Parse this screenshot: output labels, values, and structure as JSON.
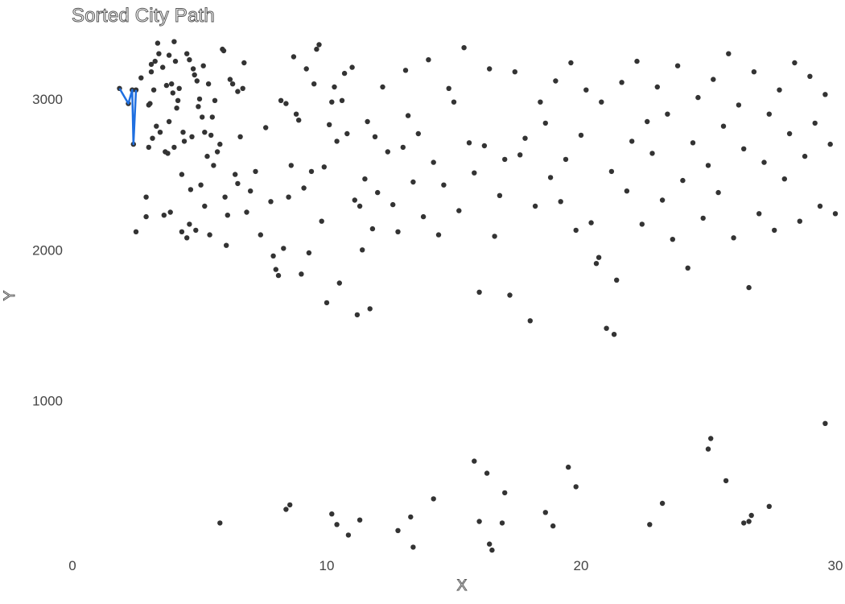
{
  "chart_data": {
    "type": "scatter",
    "title": "Sorted City Path",
    "xlabel": "X",
    "ylabel": "Y",
    "xlim": [
      0,
      30
    ],
    "ylim": [
      0,
      3400
    ],
    "xticks": [
      "0",
      "10",
      "20",
      "30"
    ],
    "yticks": [
      "1000",
      "2000",
      "3000"
    ],
    "grid": false,
    "colors": {
      "points": "#333333",
      "path": "#1f6fe0"
    },
    "path": [
      [
        1.85,
        3070
      ],
      [
        2.2,
        2970
      ],
      [
        2.35,
        3060
      ],
      [
        2.4,
        2700
      ],
      [
        2.5,
        3060
      ]
    ],
    "points": [
      [
        1.85,
        3070
      ],
      [
        2.2,
        2970
      ],
      [
        2.35,
        3060
      ],
      [
        2.4,
        2700
      ],
      [
        2.5,
        3060
      ],
      [
        2.5,
        2120
      ],
      [
        2.7,
        3140
      ],
      [
        2.9,
        2220
      ],
      [
        2.9,
        2350
      ],
      [
        3.0,
        2960
      ],
      [
        3.0,
        2680
      ],
      [
        3.05,
        2970
      ],
      [
        3.1,
        3230
      ],
      [
        3.1,
        3180
      ],
      [
        3.15,
        2740
      ],
      [
        3.2,
        3060
      ],
      [
        3.25,
        3250
      ],
      [
        3.3,
        2820
      ],
      [
        3.35,
        3370
      ],
      [
        3.4,
        3300
      ],
      [
        3.45,
        2780
      ],
      [
        3.55,
        3210
      ],
      [
        3.6,
        2230
      ],
      [
        3.65,
        2650
      ],
      [
        3.7,
        3090
      ],
      [
        3.75,
        2640
      ],
      [
        3.8,
        3290
      ],
      [
        3.8,
        2850
      ],
      [
        3.85,
        2250
      ],
      [
        3.9,
        3100
      ],
      [
        3.95,
        3040
      ],
      [
        4.0,
        2680
      ],
      [
        4.0,
        3380
      ],
      [
        4.05,
        3250
      ],
      [
        4.1,
        2940
      ],
      [
        4.15,
        2990
      ],
      [
        4.2,
        3070
      ],
      [
        4.3,
        2500
      ],
      [
        4.3,
        2120
      ],
      [
        4.35,
        2780
      ],
      [
        4.4,
        2720
      ],
      [
        4.5,
        3300
      ],
      [
        4.5,
        2080
      ],
      [
        4.6,
        3260
      ],
      [
        4.6,
        2170
      ],
      [
        4.65,
        2400
      ],
      [
        4.7,
        2750
      ],
      [
        4.75,
        3200
      ],
      [
        4.8,
        3160
      ],
      [
        4.85,
        2130
      ],
      [
        4.9,
        3120
      ],
      [
        4.95,
        2950
      ],
      [
        5.0,
        3000
      ],
      [
        5.05,
        2430
      ],
      [
        5.1,
        2880
      ],
      [
        5.15,
        3220
      ],
      [
        5.2,
        2780
      ],
      [
        5.2,
        2290
      ],
      [
        5.3,
        2620
      ],
      [
        5.35,
        3100
      ],
      [
        5.4,
        2100
      ],
      [
        5.45,
        2760
      ],
      [
        5.5,
        2880
      ],
      [
        5.55,
        2560
      ],
      [
        5.6,
        2990
      ],
      [
        5.7,
        2650
      ],
      [
        5.8,
        2700
      ],
      [
        5.9,
        3330
      ],
      [
        5.95,
        3320
      ],
      [
        6.0,
        2350
      ],
      [
        6.05,
        2030
      ],
      [
        6.1,
        2230
      ],
      [
        6.2,
        3130
      ],
      [
        6.3,
        3100
      ],
      [
        6.4,
        2500
      ],
      [
        6.5,
        2440
      ],
      [
        6.5,
        3050
      ],
      [
        6.6,
        2750
      ],
      [
        6.7,
        3070
      ],
      [
        6.75,
        3240
      ],
      [
        6.85,
        2250
      ],
      [
        7.0,
        2390
      ],
      [
        7.2,
        2520
      ],
      [
        7.4,
        2100
      ],
      [
        7.6,
        2810
      ],
      [
        7.8,
        2320
      ],
      [
        7.9,
        1960
      ],
      [
        8.0,
        1870
      ],
      [
        8.1,
        1830
      ],
      [
        8.2,
        2990
      ],
      [
        8.3,
        2010
      ],
      [
        8.4,
        2970
      ],
      [
        8.5,
        2350
      ],
      [
        8.6,
        2560
      ],
      [
        8.7,
        3280
      ],
      [
        8.8,
        2900
      ],
      [
        8.9,
        2860
      ],
      [
        9.0,
        1840
      ],
      [
        9.1,
        2410
      ],
      [
        9.2,
        3200
      ],
      [
        9.3,
        1980
      ],
      [
        9.4,
        2520
      ],
      [
        9.5,
        3100
      ],
      [
        9.6,
        3330
      ],
      [
        9.7,
        3360
      ],
      [
        9.8,
        2190
      ],
      [
        9.9,
        2550
      ],
      [
        10.0,
        1650
      ],
      [
        10.1,
        2830
      ],
      [
        10.2,
        2980
      ],
      [
        10.3,
        3080
      ],
      [
        10.4,
        2720
      ],
      [
        10.5,
        1780
      ],
      [
        10.6,
        2990
      ],
      [
        10.7,
        3170
      ],
      [
        10.8,
        2770
      ],
      [
        11.0,
        3210
      ],
      [
        11.1,
        2330
      ],
      [
        11.2,
        1570
      ],
      [
        11.3,
        2290
      ],
      [
        11.4,
        2000
      ],
      [
        11.5,
        2470
      ],
      [
        11.6,
        2850
      ],
      [
        11.7,
        1610
      ],
      [
        11.8,
        2140
      ],
      [
        11.9,
        2750
      ],
      [
        12.0,
        2380
      ],
      [
        12.2,
        3080
      ],
      [
        12.4,
        2650
      ],
      [
        12.6,
        2300
      ],
      [
        12.8,
        2120
      ],
      [
        13.0,
        2680
      ],
      [
        13.1,
        3190
      ],
      [
        13.2,
        2890
      ],
      [
        13.4,
        2450
      ],
      [
        13.6,
        2770
      ],
      [
        13.8,
        2220
      ],
      [
        14.0,
        3260
      ],
      [
        14.2,
        2580
      ],
      [
        14.4,
        2100
      ],
      [
        14.6,
        2430
      ],
      [
        14.8,
        3070
      ],
      [
        15.0,
        2980
      ],
      [
        15.2,
        2260
      ],
      [
        15.4,
        3340
      ],
      [
        15.6,
        2710
      ],
      [
        15.8,
        2510
      ],
      [
        16.0,
        1720
      ],
      [
        16.2,
        2690
      ],
      [
        16.4,
        3200
      ],
      [
        16.6,
        2090
      ],
      [
        16.8,
        2360
      ],
      [
        17.0,
        2600
      ],
      [
        17.2,
        1700
      ],
      [
        17.4,
        3180
      ],
      [
        17.6,
        2630
      ],
      [
        17.8,
        2740
      ],
      [
        18.0,
        1530
      ],
      [
        18.2,
        2290
      ],
      [
        18.4,
        2980
      ],
      [
        18.6,
        2840
      ],
      [
        18.8,
        2480
      ],
      [
        19.0,
        3120
      ],
      [
        19.2,
        2320
      ],
      [
        19.4,
        2600
      ],
      [
        19.6,
        3240
      ],
      [
        19.8,
        2130
      ],
      [
        20.0,
        2760
      ],
      [
        20.2,
        3060
      ],
      [
        20.4,
        2180
      ],
      [
        20.6,
        1910
      ],
      [
        20.7,
        1950
      ],
      [
        20.8,
        2980
      ],
      [
        21.0,
        1480
      ],
      [
        21.2,
        2520
      ],
      [
        21.3,
        1440
      ],
      [
        21.4,
        1800
      ],
      [
        21.6,
        3110
      ],
      [
        21.8,
        2390
      ],
      [
        22.0,
        2720
      ],
      [
        22.2,
        3250
      ],
      [
        22.4,
        2170
      ],
      [
        22.6,
        2850
      ],
      [
        22.8,
        2640
      ],
      [
        23.0,
        3080
      ],
      [
        23.2,
        2330
      ],
      [
        23.4,
        2900
      ],
      [
        23.6,
        2070
      ],
      [
        23.8,
        3220
      ],
      [
        24.0,
        2460
      ],
      [
        24.2,
        1880
      ],
      [
        24.4,
        2710
      ],
      [
        24.6,
        3010
      ],
      [
        24.8,
        2210
      ],
      [
        25.0,
        2560
      ],
      [
        25.2,
        3130
      ],
      [
        25.4,
        2380
      ],
      [
        25.6,
        2820
      ],
      [
        25.8,
        3300
      ],
      [
        26.0,
        2080
      ],
      [
        26.2,
        2960
      ],
      [
        26.4,
        2670
      ],
      [
        26.6,
        1750
      ],
      [
        26.8,
        3180
      ],
      [
        27.0,
        2240
      ],
      [
        27.2,
        2580
      ],
      [
        27.4,
        2900
      ],
      [
        27.6,
        2130
      ],
      [
        27.8,
        3060
      ],
      [
        28.0,
        2470
      ],
      [
        28.2,
        2770
      ],
      [
        28.4,
        3240
      ],
      [
        28.6,
        2190
      ],
      [
        28.8,
        2620
      ],
      [
        29.0,
        3150
      ],
      [
        29.2,
        2840
      ],
      [
        29.4,
        2290
      ],
      [
        29.6,
        3030
      ],
      [
        29.8,
        2700
      ],
      [
        30.0,
        2240
      ],
      [
        5.8,
        190
      ],
      [
        8.4,
        280
      ],
      [
        8.55,
        310
      ],
      [
        10.2,
        250
      ],
      [
        10.4,
        180
      ],
      [
        10.85,
        110
      ],
      [
        11.3,
        210
      ],
      [
        12.8,
        140
      ],
      [
        13.3,
        230
      ],
      [
        13.4,
        30
      ],
      [
        14.2,
        350
      ],
      [
        15.8,
        600
      ],
      [
        16.0,
        200
      ],
      [
        16.3,
        520
      ],
      [
        16.4,
        50
      ],
      [
        16.5,
        10
      ],
      [
        16.9,
        190
      ],
      [
        17.0,
        390
      ],
      [
        18.6,
        260
      ],
      [
        18.9,
        170
      ],
      [
        19.5,
        560
      ],
      [
        19.8,
        430
      ],
      [
        22.7,
        180
      ],
      [
        23.2,
        320
      ],
      [
        25.0,
        680
      ],
      [
        25.1,
        750
      ],
      [
        25.7,
        470
      ],
      [
        26.4,
        190
      ],
      [
        26.6,
        200
      ],
      [
        26.7,
        240
      ],
      [
        27.4,
        300
      ],
      [
        29.6,
        850
      ]
    ]
  }
}
